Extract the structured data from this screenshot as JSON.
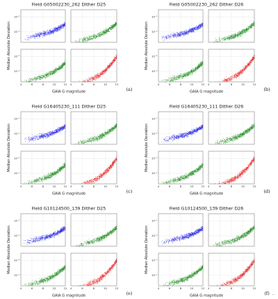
{
  "figure": {
    "panels": [
      {
        "title": "Field G05002230_262 Dither D25",
        "label": "(a)"
      },
      {
        "title": "Field G05002230_262 Dither D26",
        "label": "(b)"
      },
      {
        "title": "Field G16405230_111 Dither D25",
        "label": "(c)"
      },
      {
        "title": "Field G16405230_111 Dither D26",
        "label": "(d)"
      },
      {
        "title": "Field G10124500_139 Dither D25",
        "label": "(e)"
      },
      {
        "title": "Field G10124500_139 Dither D26",
        "label": "(f)"
      }
    ],
    "trailing_punctuation": ".",
    "ylabel": "Median Absolute Deviation",
    "xlabel": "GAIA G magnitude",
    "x_ticks": [
      "4",
      "6",
      "8",
      "10",
      "12"
    ],
    "y_ticks": [
      "10⁻¹",
      "10⁻²"
    ],
    "colors": {
      "blue": "#1f1fe6",
      "green": "#1a8a1a",
      "red": "#e81c1c",
      "frame": "#555555",
      "grid": "#d9d9d9"
    }
  },
  "chart_data": {
    "type": "scatter",
    "x_range": [
      4,
      12
    ],
    "y_scale": "log",
    "y_range": [
      0.002,
      0.3
    ],
    "grid": true,
    "subplot_colors": [
      "blue",
      "green",
      "green",
      "red"
    ],
    "note": "Each labeled panel (a)-(f) is a 2x2 grid of scatter plots of point-to-point median absolute deviation versus GAIA G magnitude; point density rises toward faint magnitudes (10-12) in every subplot."
  }
}
